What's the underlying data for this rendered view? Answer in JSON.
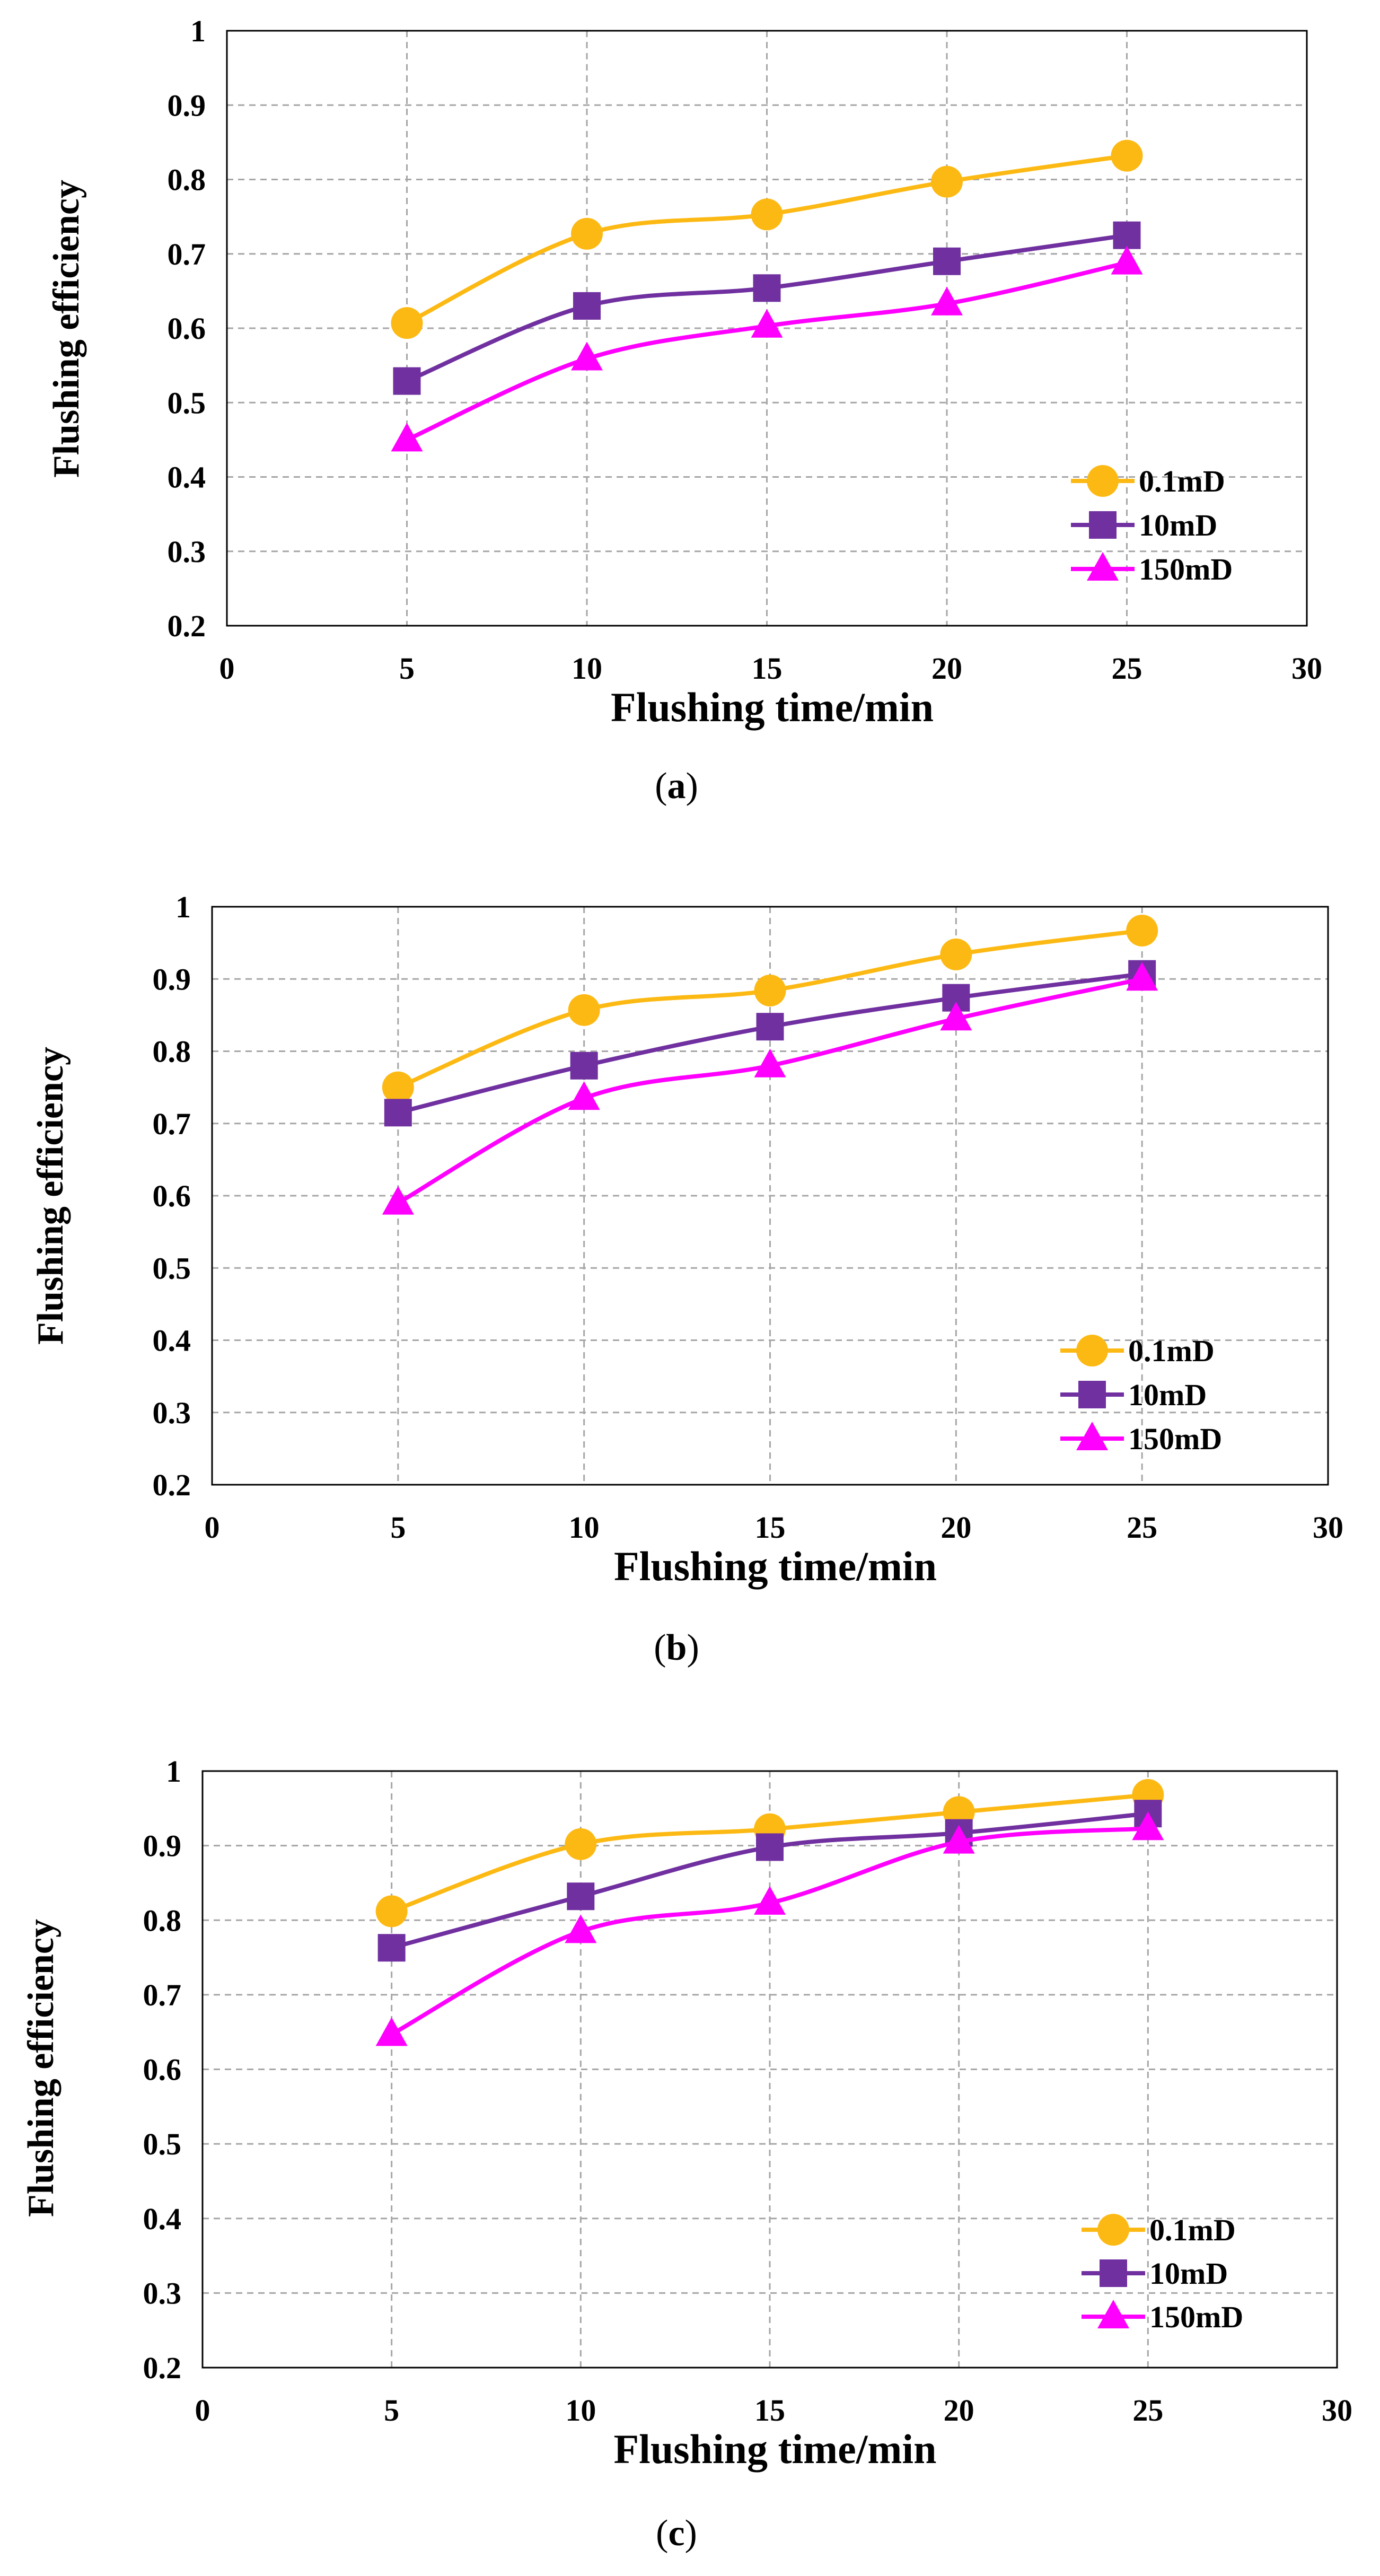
{
  "chart_data": [
    {
      "type": "line",
      "caption_letter": "a",
      "xlabel": "Flushing time/min",
      "ylabel": "Flushing efficiency",
      "xlim": [
        0,
        30
      ],
      "ylim": [
        0.2,
        1
      ],
      "xticks": [
        0,
        5,
        10,
        15,
        20,
        25,
        30
      ],
      "yticks": [
        0.2,
        0.3,
        0.4,
        0.5,
        0.6,
        0.7,
        0.8,
        0.9,
        1
      ],
      "ytick_labels": [
        "0.2",
        "0.3",
        "0.4",
        "0.5",
        "0.6",
        "0.7",
        "0.8",
        "0.9",
        "1"
      ],
      "grid": true,
      "legend": "right",
      "x": [
        5,
        10,
        15,
        20,
        25
      ],
      "series": [
        {
          "name": "0.1mD",
          "marker": "circle",
          "color": "#FDB913",
          "values": [
            0.607,
            0.727,
            0.753,
            0.797,
            0.832
          ]
        },
        {
          "name": "10mD",
          "marker": "square",
          "color": "#7030A0",
          "values": [
            0.529,
            0.63,
            0.654,
            0.69,
            0.725
          ]
        },
        {
          "name": "150mD",
          "marker": "triangle",
          "color": "#FF00FF",
          "values": [
            0.45,
            0.559,
            0.603,
            0.633,
            0.688
          ]
        }
      ]
    },
    {
      "type": "line",
      "caption_letter": "b",
      "xlabel": "Flushing time/min",
      "ylabel": "Flushing efficiency",
      "xlim": [
        0,
        30
      ],
      "ylim": [
        0.2,
        1
      ],
      "xticks": [
        0,
        5,
        10,
        15,
        20,
        25,
        30
      ],
      "yticks": [
        0.2,
        0.3,
        0.4,
        0.5,
        0.6,
        0.7,
        0.8,
        0.9,
        1
      ],
      "ytick_labels": [
        "0.2",
        "0.3",
        "0.4",
        "0.5",
        "0.6",
        "0.7",
        "0.8",
        "0.9",
        "1"
      ],
      "grid": true,
      "legend": "right",
      "x": [
        5,
        10,
        15,
        20,
        25
      ],
      "series": [
        {
          "name": "0.1mD",
          "marker": "circle",
          "color": "#FDB913",
          "values": [
            0.75,
            0.857,
            0.884,
            0.934,
            0.967
          ]
        },
        {
          "name": "10mD",
          "marker": "square",
          "color": "#7030A0",
          "values": [
            0.715,
            0.78,
            0.834,
            0.874,
            0.907
          ]
        },
        {
          "name": "150mD",
          "marker": "triangle",
          "color": "#FF00FF",
          "values": [
            0.59,
            0.735,
            0.78,
            0.845,
            0.9
          ]
        }
      ]
    },
    {
      "type": "line",
      "caption_letter": "c",
      "xlabel": "Flushing time/min",
      "ylabel": "Flushing efficiency",
      "xlim": [
        0,
        30
      ],
      "ylim": [
        0.2,
        1
      ],
      "xticks": [
        0,
        5,
        10,
        15,
        20,
        25,
        30
      ],
      "yticks": [
        0.2,
        0.3,
        0.4,
        0.5,
        0.6,
        0.7,
        0.8,
        0.9,
        1
      ],
      "ytick_labels": [
        "0.2",
        "0.3",
        "0.4",
        "0.5",
        "0.6",
        "0.7",
        "0.8",
        "0.9",
        "1"
      ],
      "grid": true,
      "legend": "right",
      "x": [
        5,
        10,
        15,
        20,
        25
      ],
      "series": [
        {
          "name": "0.1mD",
          "marker": "circle",
          "color": "#FDB913",
          "values": [
            0.812,
            0.902,
            0.922,
            0.945,
            0.968
          ]
        },
        {
          "name": "10mD",
          "marker": "square",
          "color": "#7030A0",
          "values": [
            0.763,
            0.832,
            0.898,
            0.917,
            0.943
          ]
        },
        {
          "name": "150mD",
          "marker": "triangle",
          "color": "#FF00FF",
          "values": [
            0.647,
            0.785,
            0.823,
            0.905,
            0.923
          ]
        }
      ]
    }
  ]
}
